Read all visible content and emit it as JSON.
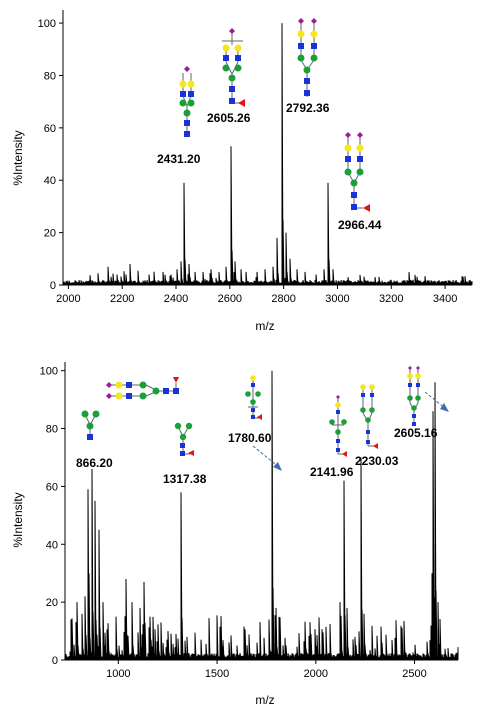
{
  "chart_data": [
    {
      "type": "line",
      "xlabel": "m/z",
      "ylabel": "%Intensity",
      "xlim": [
        1980,
        3500
      ],
      "ylim": [
        0,
        105
      ],
      "xticks": [
        2000,
        2200,
        2400,
        2600,
        2800,
        3000,
        3200,
        3400
      ],
      "yticks": [
        0,
        20,
        40,
        60,
        80,
        100
      ],
      "peaks": [
        {
          "x": 2148,
          "y": 7
        },
        {
          "x": 2180,
          "y": 4
        },
        {
          "x": 2215,
          "y": 4
        },
        {
          "x": 2230,
          "y": 8
        },
        {
          "x": 2260,
          "y": 5
        },
        {
          "x": 2300,
          "y": 4
        },
        {
          "x": 2350,
          "y": 5
        },
        {
          "x": 2380,
          "y": 4
        },
        {
          "x": 2405,
          "y": 6
        },
        {
          "x": 2418,
          "y": 9
        },
        {
          "x": 2431.2,
          "y": 39
        },
        {
          "x": 2447,
          "y": 8
        },
        {
          "x": 2470,
          "y": 5
        },
        {
          "x": 2500,
          "y": 5
        },
        {
          "x": 2530,
          "y": 6
        },
        {
          "x": 2560,
          "y": 5
        },
        {
          "x": 2585,
          "y": 7
        },
        {
          "x": 2605.26,
          "y": 53
        },
        {
          "x": 2621,
          "y": 9
        },
        {
          "x": 2640,
          "y": 6
        },
        {
          "x": 2660,
          "y": 5
        },
        {
          "x": 2700,
          "y": 5
        },
        {
          "x": 2730,
          "y": 6
        },
        {
          "x": 2760,
          "y": 7
        },
        {
          "x": 2776,
          "y": 18
        },
        {
          "x": 2792.36,
          "y": 100
        },
        {
          "x": 2808,
          "y": 20
        },
        {
          "x": 2824,
          "y": 10
        },
        {
          "x": 2850,
          "y": 6
        },
        {
          "x": 2880,
          "y": 5
        },
        {
          "x": 2920,
          "y": 4
        },
        {
          "x": 2950,
          "y": 6
        },
        {
          "x": 2966.44,
          "y": 39
        },
        {
          "x": 2982,
          "y": 6
        },
        {
          "x": 3040,
          "y": 3
        },
        {
          "x": 3100,
          "y": 2
        },
        {
          "x": 3140,
          "y": 3
        },
        {
          "x": 3200,
          "y": 2
        },
        {
          "x": 3280,
          "y": 2
        }
      ],
      "annotations": [
        {
          "text": "2431.20",
          "x": 2431.2
        },
        {
          "text": "2605.26",
          "x": 2605.26
        },
        {
          "text": "2792.36",
          "x": 2792.36
        },
        {
          "text": "2966.44",
          "x": 2966.44
        }
      ]
    },
    {
      "type": "line",
      "xlabel": "m/z",
      "ylabel": "%Intensity",
      "xlim": [
        730,
        2720
      ],
      "ylim": [
        0,
        103
      ],
      "xticks": [
        1000,
        1500,
        2000,
        2500
      ],
      "yticks": [
        0,
        20,
        40,
        60,
        80,
        100
      ],
      "peaks": [
        {
          "x": 760,
          "y": 14
        },
        {
          "x": 790,
          "y": 20
        },
        {
          "x": 815,
          "y": 16
        },
        {
          "x": 830,
          "y": 22
        },
        {
          "x": 845,
          "y": 59
        },
        {
          "x": 852,
          "y": 30
        },
        {
          "x": 866.2,
          "y": 66
        },
        {
          "x": 880,
          "y": 55
        },
        {
          "x": 900,
          "y": 45
        },
        {
          "x": 920,
          "y": 20
        },
        {
          "x": 950,
          "y": 12
        },
        {
          "x": 990,
          "y": 15
        },
        {
          "x": 1040,
          "y": 28
        },
        {
          "x": 1070,
          "y": 20
        },
        {
          "x": 1110,
          "y": 18
        },
        {
          "x": 1130,
          "y": 27
        },
        {
          "x": 1160,
          "y": 15
        },
        {
          "x": 1200,
          "y": 12
        },
        {
          "x": 1250,
          "y": 10
        },
        {
          "x": 1290,
          "y": 9
        },
        {
          "x": 1317.38,
          "y": 58
        },
        {
          "x": 1350,
          "y": 8
        },
        {
          "x": 1420,
          "y": 7
        },
        {
          "x": 1500,
          "y": 6
        },
        {
          "x": 1600,
          "y": 5
        },
        {
          "x": 1700,
          "y": 6
        },
        {
          "x": 1764,
          "y": 14
        },
        {
          "x": 1780.6,
          "y": 100
        },
        {
          "x": 1796,
          "y": 18
        },
        {
          "x": 1850,
          "y": 5
        },
        {
          "x": 1950,
          "y": 4
        },
        {
          "x": 2050,
          "y": 4
        },
        {
          "x": 2125,
          "y": 20
        },
        {
          "x": 2141.96,
          "y": 62
        },
        {
          "x": 2158,
          "y": 18
        },
        {
          "x": 2200,
          "y": 8
        },
        {
          "x": 2230.03,
          "y": 70
        },
        {
          "x": 2246,
          "y": 16
        },
        {
          "x": 2300,
          "y": 4
        },
        {
          "x": 2450,
          "y": 3
        },
        {
          "x": 2589,
          "y": 30
        },
        {
          "x": 2595,
          "y": 86
        },
        {
          "x": 2605.16,
          "y": 96
        },
        {
          "x": 2620,
          "y": 20
        }
      ],
      "annotations": [
        {
          "text": "866.20",
          "x": 866.2
        },
        {
          "text": "1317.38",
          "x": 1317.38
        },
        {
          "text": "1780.60",
          "x": 1780.6
        },
        {
          "text": "2141.96",
          "x": 2141.96
        },
        {
          "text": "2230.03",
          "x": 2230.03
        },
        {
          "text": "2605.16",
          "x": 2605.16
        }
      ]
    }
  ],
  "colors": {
    "galactose": "#f5e61e",
    "mannose": "#1a9f3a",
    "glcnac": "#1a33d9",
    "sialic_acid": "#9b1b9b",
    "fucose": "#e0151b",
    "arrow": "#3f6fb0"
  }
}
